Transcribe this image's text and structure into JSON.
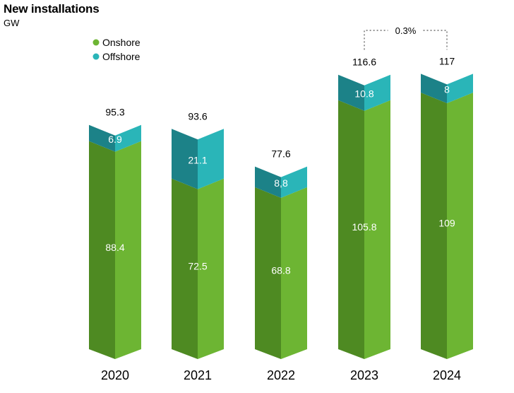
{
  "chart_data": {
    "type": "bar",
    "stacked": true,
    "title": "New installations",
    "unit": "GW",
    "categories": [
      "2020",
      "2021",
      "2022",
      "2023",
      "2024"
    ],
    "series": [
      {
        "name": "Onshore",
        "values": [
          88.4,
          72.5,
          68.8,
          105.8,
          109
        ],
        "labels": [
          "88.4",
          "72.5",
          "68.8",
          "105.8",
          "109"
        ]
      },
      {
        "name": "Offshore",
        "values": [
          6.9,
          21.1,
          8.8,
          10.8,
          8
        ],
        "labels": [
          "6.9",
          "21.1",
          "8,8",
          "10.8",
          "8"
        ]
      }
    ],
    "totals": [
      95.3,
      93.6,
      77.6,
      116.6,
      117
    ],
    "total_labels": [
      "95.3",
      "93.6",
      "77.6",
      "116.6",
      "117"
    ],
    "annotation": {
      "from": "2023",
      "to": "2024",
      "text": "0.3%"
    },
    "legend_position": "top-left",
    "colors": {
      "onshore_light": "#6db533",
      "onshore_dark": "#4e8a22",
      "offshore_light": "#2ab5b8",
      "offshore_dark": "#1c8288"
    }
  }
}
